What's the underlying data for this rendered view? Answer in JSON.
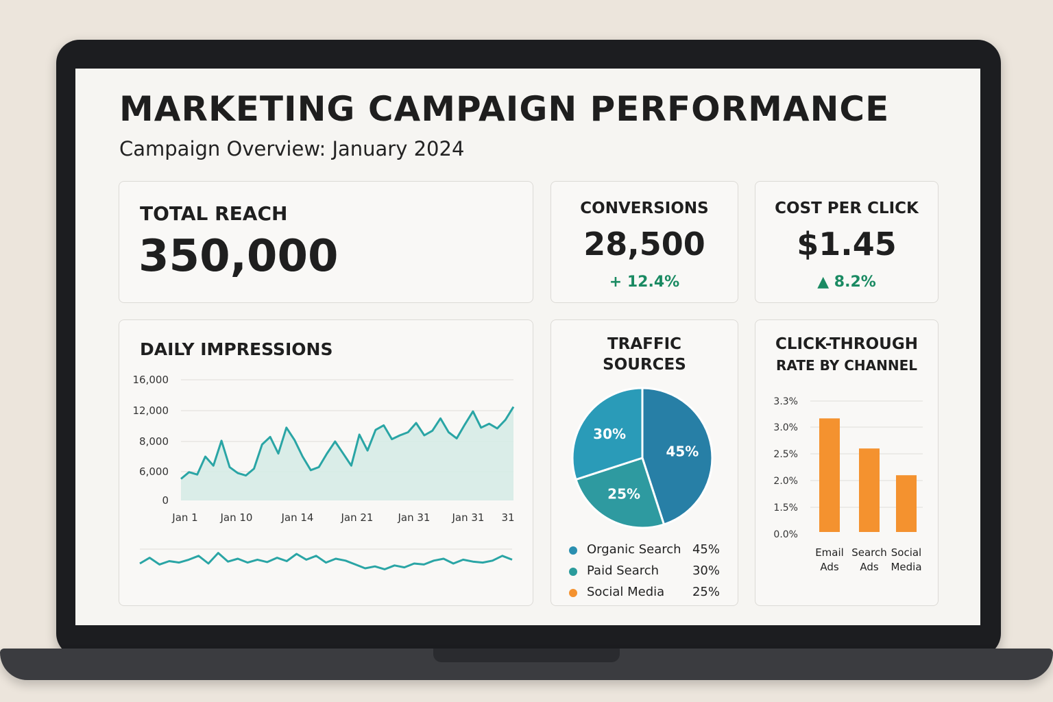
{
  "header": {
    "title": "MARKETING CAMPAIGN PERFORMANCE",
    "subtitle": "Campaign Overview: January 2024"
  },
  "kpis": {
    "total_reach": {
      "label": "TOTAL REACH",
      "value": "350,000"
    },
    "conversions": {
      "label": "CONVERSIONS",
      "value": "28,500",
      "delta": "+ 12.4%"
    },
    "cost_per_click": {
      "label": "COST PER CLICK",
      "value": "$1.45",
      "delta": "▲ 8.2%"
    }
  },
  "colors": {
    "teal_line": "#2aa5a5",
    "teal_fill": "#d6ebe7",
    "pie_organic": "#277fa6",
    "pie_paid": "#2a9bb8",
    "pie_third": "#2e9aa0",
    "orange": "#f4922f",
    "positive": "#1a8a62"
  },
  "impressions": {
    "title": "DAILY IMPRESSIONS",
    "chart_data": {
      "type": "area",
      "y_tick_labels": [
        "16,000",
        "12,000",
        "8,000",
        "6,000",
        "0"
      ],
      "x_tick_labels": [
        "Jan 1",
        "Jan 10",
        "Jan 14",
        "Jan 21",
        "Jan 31",
        "Jan 31",
        "31"
      ],
      "values": [
        4500,
        5900,
        5400,
        7000,
        6400,
        8100,
        6300,
        5700,
        5200,
        6200,
        7800,
        8600,
        7200,
        9800,
        8200,
        7000,
        6100,
        6300,
        7200,
        8000,
        7200,
        6400,
        8900,
        7400,
        9500,
        10100,
        8300,
        8800,
        9200,
        10400,
        8800,
        9400,
        11000,
        9200,
        8400,
        10200,
        11900,
        9800,
        10300,
        9700,
        10800,
        12500
      ],
      "grid": true
    },
    "sparkline": {
      "values": [
        50,
        62,
        48,
        55,
        52,
        58,
        66,
        50,
        72,
        54,
        60,
        52,
        58,
        53,
        62,
        55,
        70,
        58,
        66,
        52,
        60,
        56,
        48,
        40,
        44,
        38,
        46,
        42,
        50,
        48,
        56,
        60,
        50,
        58,
        54,
        52,
        56,
        66,
        58
      ]
    }
  },
  "traffic": {
    "title_line1": "TRAFFIC",
    "title_line2": "SOURCES",
    "chart_data": {
      "type": "pie",
      "slices": [
        {
          "label": "45%",
          "value": 45
        },
        {
          "label": "25%",
          "value": 25
        },
        {
          "label": "30%",
          "value": 30
        }
      ]
    },
    "legend": [
      {
        "name": "Organic Search",
        "pct": "45%",
        "color": "#2a8fb0"
      },
      {
        "name": "Paid Search",
        "pct": "30%",
        "color": "#2a9b9b"
      },
      {
        "name": "Social Media",
        "pct": "25%",
        "color": "#f4922f"
      }
    ]
  },
  "ctr": {
    "title_line1": "CLICK-THROUGH",
    "title_line2": "RATE BY CHANNEL",
    "chart_data": {
      "type": "bar",
      "y_tick_labels": [
        "3.3%",
        "3.0%",
        "2.5%",
        "2.0%",
        "1.5%",
        "0.0%"
      ],
      "categories": [
        [
          "Email",
          "Ads"
        ],
        [
          "Search",
          "Ads"
        ],
        [
          "Social",
          "Media"
        ]
      ],
      "values": [
        3.1,
        2.6,
        2.1
      ]
    }
  }
}
